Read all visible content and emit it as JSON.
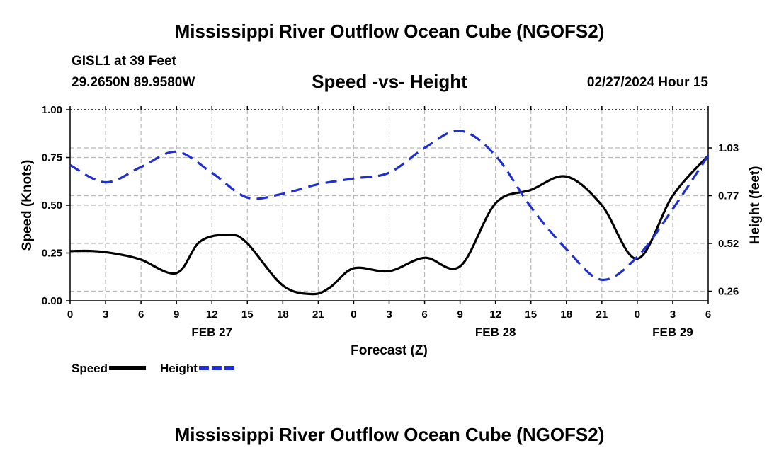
{
  "header": {
    "title": "Mississippi River Outflow Ocean Cube (NGOFS2)",
    "station": "GISL1 at 39 Feet",
    "coords": "29.2650N  89.9580W",
    "subtitle": "Speed -vs- Height",
    "datetime": "02/27/2024 Hour 15"
  },
  "footer": {
    "title": "Mississippi River Outflow Ocean Cube (NGOFS2)"
  },
  "chart_data": {
    "type": "line",
    "title": "Speed -vs- Height",
    "xlabel": "Forecast (Z)",
    "ylabel": "Speed (Knots)",
    "y2label": "Height (feet)",
    "x_hours_range": [
      0,
      54
    ],
    "x_tick_hours": [
      0,
      3,
      6,
      9,
      12,
      15,
      18,
      21,
      24,
      27,
      30,
      33,
      36,
      39,
      42,
      45,
      48,
      51,
      54
    ],
    "x_tick_labels": [
      "0",
      "3",
      "6",
      "9",
      "12",
      "15",
      "18",
      "21",
      "0",
      "3",
      "6",
      "9",
      "12",
      "15",
      "18",
      "21",
      "0",
      "3",
      "6"
    ],
    "date_labels": [
      {
        "hour": 12,
        "label": "FEB 27"
      },
      {
        "hour": 36,
        "label": "FEB 28"
      },
      {
        "hour": 51,
        "label": "FEB 29"
      }
    ],
    "ylim": [
      0,
      1
    ],
    "y_ticks": [
      0,
      0.25,
      0.5,
      0.75,
      1.0
    ],
    "y_tick_labels": [
      "0.00",
      "0.25",
      "0.50",
      "0.75",
      "1.00"
    ],
    "y2_ticks_at_left_scale": [
      0.05,
      0.3,
      0.55,
      0.8
    ],
    "y2_tick_labels": [
      "0.26",
      "0.52",
      "0.77",
      "1.03"
    ],
    "grid": true,
    "legend_position": "bottom-left",
    "series": [
      {
        "name": "Speed",
        "color": "#000000",
        "style": "solid",
        "x": [
          0,
          2,
          4,
          6,
          9,
          11,
          13.5,
          15,
          18,
          20.5,
          22,
          24,
          27,
          30,
          33,
          36,
          39,
          42,
          45,
          48,
          51,
          54
        ],
        "values": [
          0.26,
          0.26,
          0.245,
          0.215,
          0.145,
          0.31,
          0.345,
          0.3,
          0.08,
          0.035,
          0.07,
          0.17,
          0.155,
          0.225,
          0.18,
          0.51,
          0.58,
          0.65,
          0.5,
          0.22,
          0.55,
          0.76
        ]
      },
      {
        "name": "Height",
        "color": "#1f2fd0",
        "style": "dashed",
        "x": [
          0,
          3,
          6,
          9,
          12,
          15,
          18,
          21,
          24,
          27,
          30,
          33,
          36,
          39,
          42,
          45,
          48,
          51,
          54
        ],
        "values": [
          0.71,
          0.62,
          0.7,
          0.78,
          0.67,
          0.54,
          0.56,
          0.61,
          0.64,
          0.67,
          0.8,
          0.89,
          0.76,
          0.49,
          0.27,
          0.11,
          0.23,
          0.48,
          0.76
        ]
      }
    ]
  }
}
